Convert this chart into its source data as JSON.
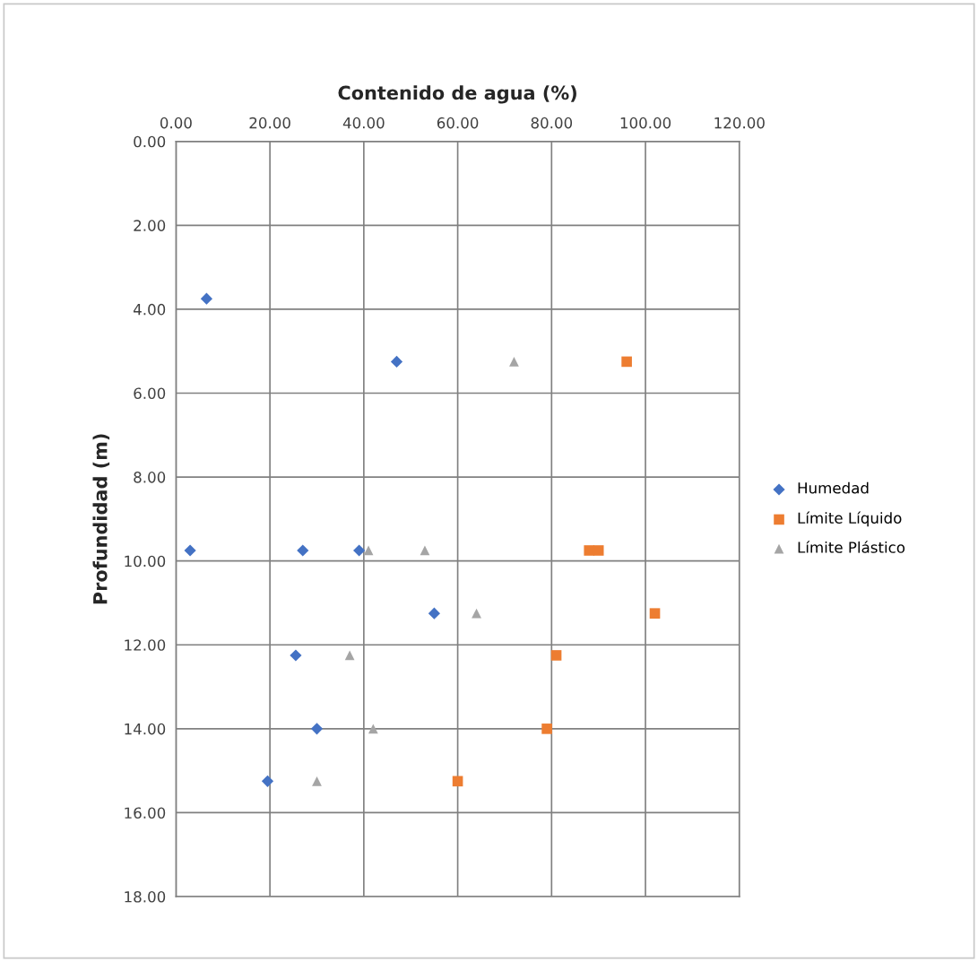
{
  "chart_data": {
    "type": "scatter",
    "xlabel": "Contenido de agua (%)",
    "ylabel": "Profundidad (m)",
    "xlim": [
      0,
      120
    ],
    "xticks": [
      {
        "value": 0,
        "label": "0.00"
      },
      {
        "value": 20,
        "label": "20.00"
      },
      {
        "value": 40,
        "label": "40.00"
      },
      {
        "value": 60,
        "label": "60.00"
      },
      {
        "value": 80,
        "label": "80.00"
      },
      {
        "value": 100,
        "label": "100.00"
      },
      {
        "value": 120,
        "label": "120.00"
      }
    ],
    "ylim": [
      18,
      0
    ],
    "yticks": [
      {
        "value": 0,
        "label": "0.00"
      },
      {
        "value": 2,
        "label": "2.00"
      },
      {
        "value": 4,
        "label": "4.00"
      },
      {
        "value": 6,
        "label": "6.00"
      },
      {
        "value": 8,
        "label": "8.00"
      },
      {
        "value": 10,
        "label": "10.00"
      },
      {
        "value": 12,
        "label": "12.00"
      },
      {
        "value": 14,
        "label": "14.00"
      },
      {
        "value": 16,
        "label": "16.00"
      },
      {
        "value": 18,
        "label": "18.00"
      }
    ],
    "grid": true,
    "legend": "right",
    "series": [
      {
        "name": "Humedad",
        "color": "#4472c4",
        "marker": "diamond",
        "x": [
          6.5,
          47,
          3,
          27,
          39,
          55,
          25.5,
          30,
          19.5
        ],
        "values": [
          3.75,
          5.25,
          9.75,
          9.75,
          9.75,
          11.25,
          12.25,
          14.0,
          15.25
        ]
      },
      {
        "name": "Límite Líquido",
        "color": "#ed7d31",
        "marker": "square",
        "x": [
          96,
          88,
          90,
          102,
          81,
          79,
          60
        ],
        "values": [
          5.25,
          9.75,
          9.75,
          11.25,
          12.25,
          14.0,
          15.25
        ]
      },
      {
        "name": "Límite Plástico",
        "color": "#a5a5a5",
        "marker": "triangle",
        "x": [
          72,
          41,
          53,
          64,
          37,
          42,
          30
        ],
        "values": [
          5.25,
          9.75,
          9.75,
          11.25,
          12.25,
          14.0,
          15.25
        ]
      }
    ]
  }
}
